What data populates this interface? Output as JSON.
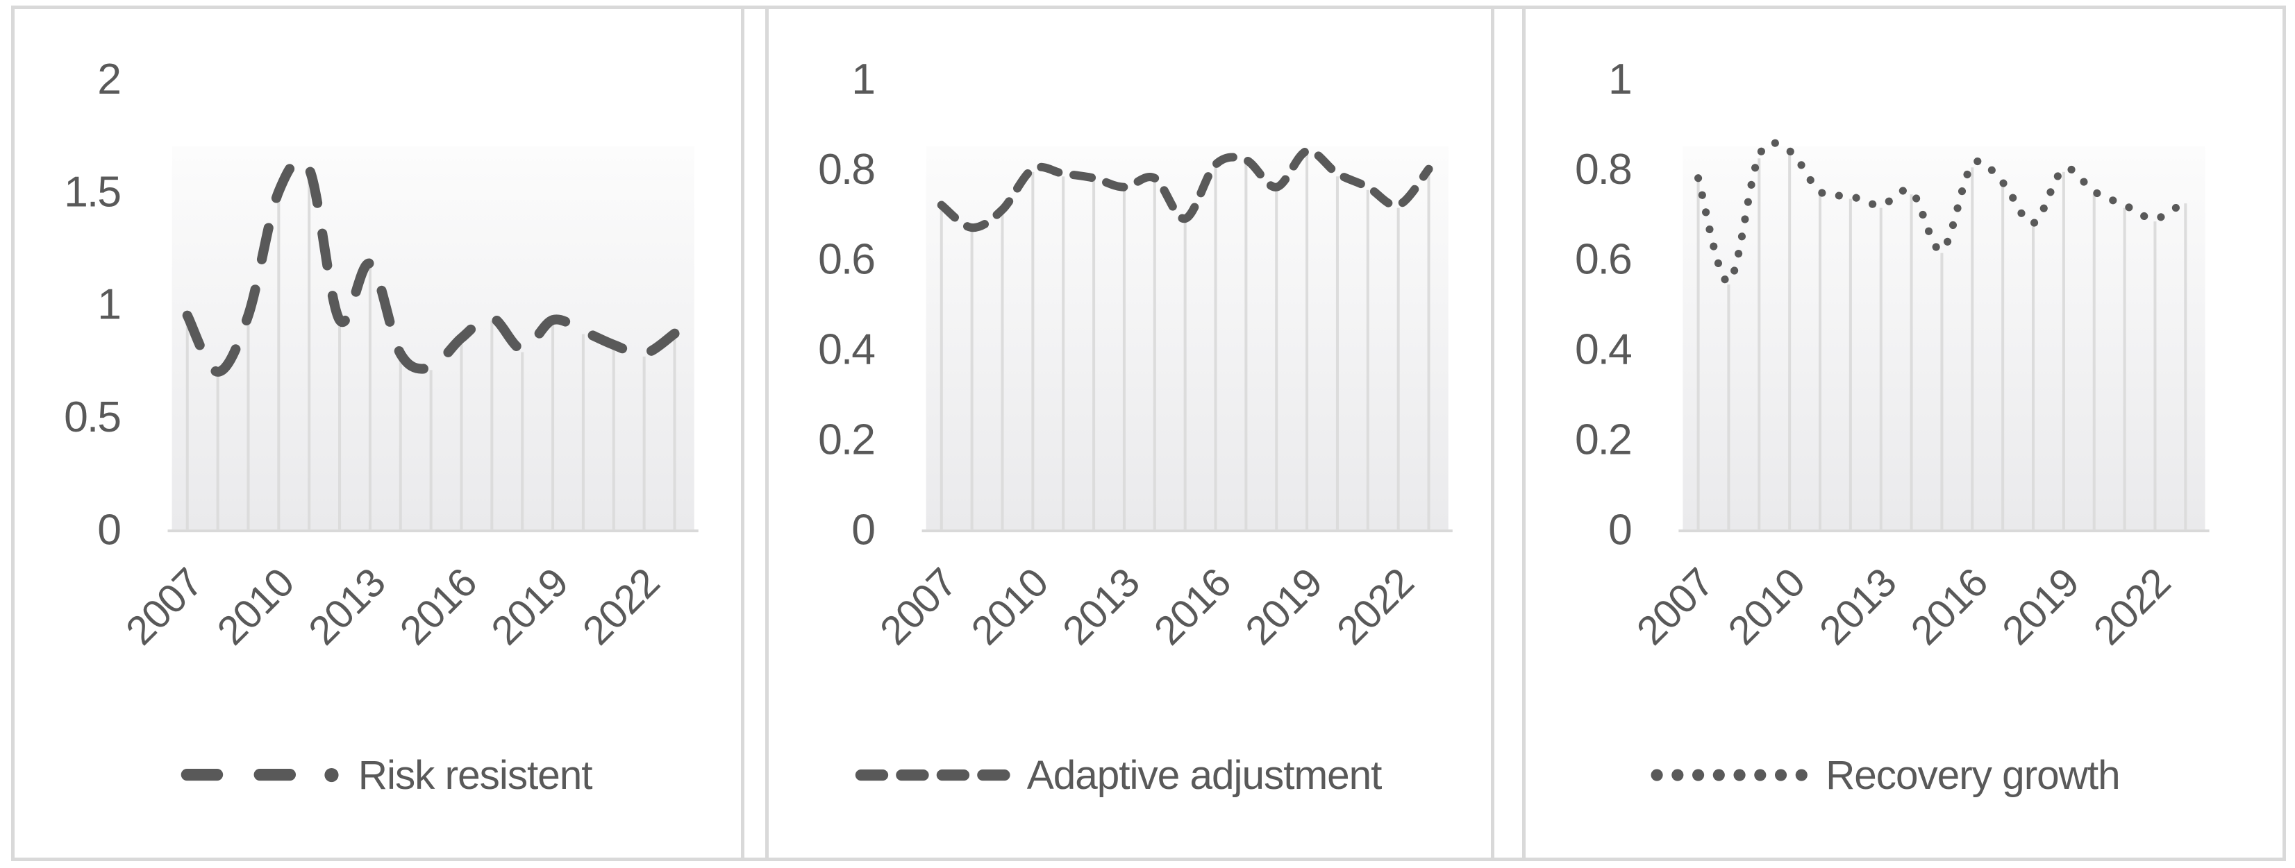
{
  "page": {
    "background": "#ffffff",
    "frame_color": "#d9d9d9"
  },
  "colors": {
    "series_line": "#595959",
    "text": "#595959",
    "dropline": "#dcdcdc",
    "axis_line": "#d9d9d9",
    "plot_fill_top": "#fcfcfc",
    "plot_fill_bottom": "#eaeaec"
  },
  "chart_data": [
    {
      "type": "line",
      "name": "risk-resistent",
      "legend": "Risk resistent",
      "line_style": "long-dash-dot",
      "smooth": true,
      "drop_lines": true,
      "grid": false,
      "legend_position": "bottom",
      "categories": [
        2007,
        2008,
        2009,
        2010,
        2011,
        2012,
        2013,
        2014,
        2015,
        2016,
        2017,
        2018,
        2019,
        2020,
        2021,
        2022,
        2023
      ],
      "values": [
        0.95,
        0.7,
        0.95,
        1.5,
        1.6,
        0.93,
        1.18,
        0.78,
        0.72,
        0.85,
        0.94,
        0.8,
        0.93,
        0.88,
        0.82,
        0.78,
        0.87
      ],
      "ylim": [
        0,
        2
      ],
      "yticks": [
        0,
        0.5,
        1,
        1.5,
        2
      ],
      "ytick_labels": [
        "0",
        "0.5",
        "1",
        "1.5",
        "2"
      ],
      "xtick_indices": [
        0,
        3,
        6,
        9,
        12,
        15
      ],
      "xtick_labels": [
        "2007",
        "2010",
        "2013",
        "2016",
        "2019",
        "2022"
      ]
    },
    {
      "type": "line",
      "name": "adaptive-adjustment",
      "legend": "Adaptive adjustment",
      "line_style": "dash",
      "smooth": true,
      "drop_lines": true,
      "grid": false,
      "legend_position": "bottom",
      "categories": [
        2007,
        2008,
        2009,
        2010,
        2011,
        2012,
        2013,
        2014,
        2015,
        2016,
        2017,
        2018,
        2019,
        2020,
        2021,
        2022,
        2023
      ],
      "values": [
        0.72,
        0.67,
        0.71,
        0.8,
        0.79,
        0.78,
        0.76,
        0.78,
        0.69,
        0.81,
        0.82,
        0.76,
        0.84,
        0.79,
        0.76,
        0.72,
        0.8
      ],
      "ylim": [
        0,
        1
      ],
      "yticks": [
        0,
        0.2,
        0.4,
        0.6,
        0.8,
        1
      ],
      "ytick_labels": [
        "0",
        "0.2",
        "0.4",
        "0.6",
        "0.8",
        "1"
      ],
      "xtick_indices": [
        0,
        3,
        6,
        9,
        12,
        15
      ],
      "xtick_labels": [
        "2007",
        "2010",
        "2013",
        "2016",
        "2019",
        "2022"
      ]
    },
    {
      "type": "line",
      "name": "recovery-growth",
      "legend": "Recovery growth",
      "line_style": "dot",
      "smooth": true,
      "drop_lines": true,
      "grid": false,
      "legend_position": "bottom",
      "categories": [
        2007,
        2008,
        2009,
        2010,
        2011,
        2012,
        2013,
        2014,
        2015,
        2016,
        2017,
        2018,
        2019,
        2020,
        2021,
        2022,
        2023
      ],
      "values": [
        0.78,
        0.55,
        0.83,
        0.84,
        0.75,
        0.74,
        0.72,
        0.75,
        0.62,
        0.81,
        0.77,
        0.68,
        0.8,
        0.75,
        0.72,
        0.69,
        0.73
      ],
      "ylim": [
        0,
        1
      ],
      "yticks": [
        0,
        0.2,
        0.4,
        0.6,
        0.8,
        1
      ],
      "ytick_labels": [
        "0",
        "0.2",
        "0.4",
        "0.6",
        "0.8",
        "1"
      ],
      "xtick_indices": [
        0,
        3,
        6,
        9,
        12,
        15
      ],
      "xtick_labels": [
        "2007",
        "2010",
        "2013",
        "2016",
        "2019",
        "2022"
      ]
    }
  ]
}
